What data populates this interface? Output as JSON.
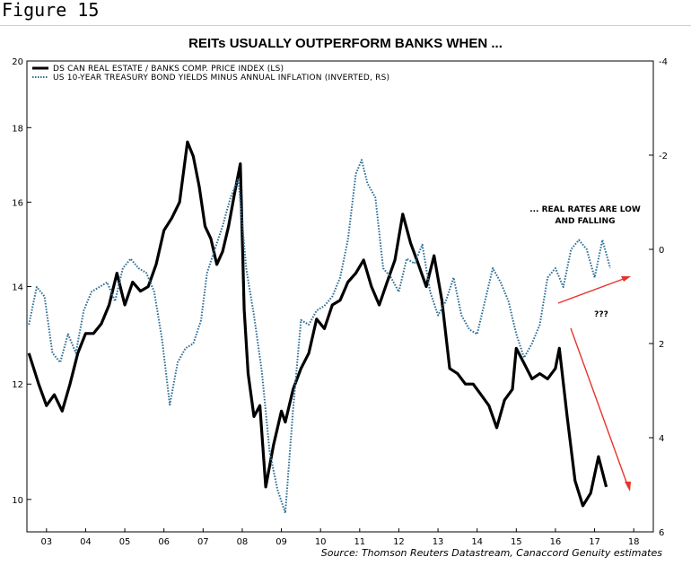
{
  "figure_label": "Figure 15",
  "title": "REITs USUALLY OUTPERFORM BANKS WHEN ...",
  "source": "Source: Thomson Reuters Datastream, Canaccord Genuity estimates",
  "colors": {
    "line_ls": "#000000",
    "line_rs": "#2e6e96",
    "arrow": "#e8332a"
  },
  "chart_data": {
    "type": "line",
    "title": "REITs USUALLY OUTPERFORM BANKS WHEN ...",
    "x_tick_labels": [
      "03",
      "04",
      "05",
      "06",
      "07",
      "08",
      "09",
      "10",
      "11",
      "12",
      "13",
      "14",
      "15",
      "16",
      "17",
      "18"
    ],
    "xlim": [
      2002.5,
      2018.5
    ],
    "y_left": {
      "ticks": [
        "10",
        "12",
        "14",
        "16",
        "18",
        "20"
      ],
      "scale": "log",
      "ylim": [
        9.5,
        20
      ]
    },
    "y_right": {
      "ticks": [
        "-4",
        "-2",
        "0",
        "2",
        "4",
        "6"
      ],
      "inverted": true,
      "ylim": [
        -4,
        6
      ]
    },
    "series": [
      {
        "name": "DS CAN REAL ESTATE / BANKS COMP. PRICE INDEX (LS)",
        "axis": "left",
        "style": "solid",
        "x": [
          2002.55,
          2002.8,
          2003.0,
          2003.2,
          2003.4,
          2003.6,
          2003.8,
          2004.0,
          2004.2,
          2004.4,
          2004.6,
          2004.8,
          2005.0,
          2005.2,
          2005.4,
          2005.6,
          2005.8,
          2006.0,
          2006.2,
          2006.4,
          2006.6,
          2006.75,
          2006.9,
          2007.05,
          2007.2,
          2007.35,
          2007.5,
          2007.65,
          2007.8,
          2007.95,
          2008.05,
          2008.15,
          2008.3,
          2008.45,
          2008.6,
          2008.8,
          2009.0,
          2009.1,
          2009.3,
          2009.5,
          2009.7,
          2009.9,
          2010.1,
          2010.3,
          2010.5,
          2010.7,
          2010.9,
          2011.1,
          2011.3,
          2011.5,
          2011.7,
          2011.9,
          2012.1,
          2012.3,
          2012.5,
          2012.7,
          2012.9,
          2013.1,
          2013.3,
          2013.5,
          2013.7,
          2013.9,
          2014.1,
          2014.3,
          2014.5,
          2014.7,
          2014.9,
          2015.0,
          2015.2,
          2015.4,
          2015.6,
          2015.8,
          2016.0,
          2016.1,
          2016.3,
          2016.5,
          2016.7,
          2016.9,
          2017.1,
          2017.3
        ],
        "y": [
          12.6,
          12.0,
          11.6,
          11.8,
          11.5,
          12.0,
          12.6,
          13.0,
          13.0,
          13.2,
          13.6,
          14.3,
          13.6,
          14.1,
          13.9,
          14.0,
          14.5,
          15.3,
          15.6,
          16.0,
          17.6,
          17.2,
          16.4,
          15.4,
          15.1,
          14.5,
          14.8,
          15.4,
          16.2,
          17.0,
          13.5,
          12.2,
          11.4,
          11.6,
          10.2,
          10.9,
          11.5,
          11.3,
          11.9,
          12.3,
          12.6,
          13.3,
          13.1,
          13.6,
          13.7,
          14.1,
          14.3,
          14.6,
          14.0,
          13.6,
          14.1,
          14.6,
          15.7,
          15.0,
          14.5,
          14.0,
          14.7,
          13.7,
          12.3,
          12.2,
          12.0,
          12.0,
          11.8,
          11.6,
          11.2,
          11.7,
          11.9,
          12.7,
          12.4,
          12.1,
          12.2,
          12.1,
          12.3,
          12.7,
          11.4,
          10.3,
          9.9,
          10.1,
          10.7,
          10.2
        ]
      },
      {
        "name": "US 10-YEAR TREASURY BOND YIELDS MINUS ANNUAL INFLATION (INVERTED, RS)",
        "axis": "right",
        "style": "dotted",
        "x": [
          2002.55,
          2002.75,
          2002.95,
          2003.15,
          2003.35,
          2003.55,
          2003.75,
          2003.95,
          2004.15,
          2004.35,
          2004.55,
          2004.75,
          2004.95,
          2005.15,
          2005.35,
          2005.55,
          2005.75,
          2005.95,
          2006.15,
          2006.35,
          2006.55,
          2006.75,
          2006.95,
          2007.1,
          2007.3,
          2007.5,
          2007.7,
          2007.9,
          2008.1,
          2008.3,
          2008.5,
          2008.7,
          2008.9,
          2009.1,
          2009.3,
          2009.5,
          2009.7,
          2009.9,
          2010.1,
          2010.3,
          2010.5,
          2010.7,
          2010.9,
          2011.05,
          2011.2,
          2011.4,
          2011.6,
          2011.8,
          2012.0,
          2012.2,
          2012.4,
          2012.6,
          2012.8,
          2013.0,
          2013.2,
          2013.4,
          2013.6,
          2013.8,
          2014.0,
          2014.2,
          2014.4,
          2014.6,
          2014.8,
          2015.0,
          2015.2,
          2015.4,
          2015.6,
          2015.8,
          2016.0,
          2016.2,
          2016.4,
          2016.6,
          2016.8,
          2017.0,
          2017.2,
          2017.4
        ],
        "y": [
          1.6,
          0.8,
          1.0,
          2.2,
          2.4,
          1.8,
          2.2,
          1.3,
          0.9,
          0.8,
          0.7,
          1.1,
          0.4,
          0.2,
          0.4,
          0.5,
          0.9,
          1.9,
          3.3,
          2.4,
          2.1,
          2.0,
          1.5,
          0.5,
          0.0,
          -0.5,
          -1.1,
          -1.5,
          0.4,
          1.4,
          2.6,
          4.3,
          5.1,
          5.6,
          3.4,
          1.5,
          1.6,
          1.3,
          1.2,
          1.0,
          0.6,
          -0.2,
          -1.6,
          -1.9,
          -1.4,
          -1.1,
          0.4,
          0.6,
          0.9,
          0.2,
          0.3,
          -0.1,
          0.9,
          1.4,
          1.1,
          0.6,
          1.4,
          1.7,
          1.8,
          1.1,
          0.4,
          0.7,
          1.1,
          1.8,
          2.3,
          2.0,
          1.6,
          0.6,
          0.4,
          0.8,
          0.0,
          -0.2,
          0.0,
          0.6,
          -0.2,
          0.4
        ]
      }
    ],
    "annotations": [
      "... REAL RATES ARE LOW",
      "AND FALLING",
      "???"
    ]
  }
}
